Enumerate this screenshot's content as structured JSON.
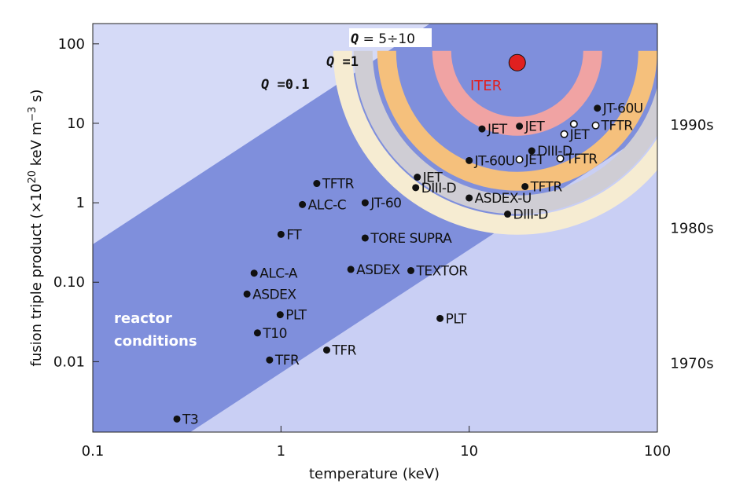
{
  "chart_data": {
    "type": "scatter",
    "xscale": "log",
    "yscale": "log",
    "xlim": [
      0.1,
      100
    ],
    "ylim": [
      0.0013,
      180
    ],
    "xlabel": "temperature (keV)",
    "ylabel_parts": {
      "prefix": "fusion triple product (×10",
      "exp1": "20",
      "mid": " keV m",
      "exp2": "−3",
      "suffix": " s)"
    },
    "xticks": [
      {
        "value": 0.1,
        "label": "0.1"
      },
      {
        "value": 1,
        "label": "1"
      },
      {
        "value": 10,
        "label": "10"
      },
      {
        "value": 100,
        "label": "100"
      }
    ],
    "yticks": [
      {
        "value": 0.01,
        "label": "0.01"
      },
      {
        "value": 0.1,
        "label": "0.10"
      },
      {
        "value": 1,
        "label": "1"
      },
      {
        "value": 10,
        "label": "10"
      },
      {
        "value": 100,
        "label": "100"
      }
    ],
    "eras": [
      {
        "label": "1990s",
        "value": 9.5
      },
      {
        "label": "1980s",
        "value": 0.48
      },
      {
        "label": "1970s",
        "value": 0.0095
      }
    ],
    "region_label_lines": [
      "reactor",
      "conditions"
    ],
    "q_labels": [
      {
        "italic": "Q",
        "rest": " = 5÷10",
        "boxed": true
      },
      {
        "italic": "Q",
        "rest": " =1",
        "boxed": false
      },
      {
        "italic": "Q",
        "rest": " =0.1",
        "boxed": false
      }
    ],
    "iter": {
      "label": "ITER",
      "x": 18,
      "y": 58,
      "color": "#e02020"
    },
    "points": [
      {
        "label": "T3",
        "x": 0.28,
        "y": 0.0019,
        "filled": true
      },
      {
        "label": "TFR",
        "x": 0.87,
        "y": 0.0105,
        "filled": true
      },
      {
        "label": "T10",
        "x": 0.75,
        "y": 0.023,
        "filled": true
      },
      {
        "label": "PLT",
        "x": 0.99,
        "y": 0.039,
        "filled": true
      },
      {
        "label": "ASDEX",
        "x": 0.66,
        "y": 0.071,
        "filled": true
      },
      {
        "label": "ALC-A",
        "x": 0.72,
        "y": 0.13,
        "filled": true
      },
      {
        "label": "FT",
        "x": 1.0,
        "y": 0.4,
        "filled": true
      },
      {
        "label": "ALC-C",
        "x": 1.3,
        "y": 0.95,
        "filled": true
      },
      {
        "label": "TFTR",
        "x": 1.55,
        "y": 1.75,
        "filled": true
      },
      {
        "label": "TFR",
        "x": 1.75,
        "y": 0.014,
        "filled": true
      },
      {
        "label": "ASDEX",
        "x": 2.35,
        "y": 0.145,
        "filled": true
      },
      {
        "label": "TORE SUPRA",
        "x": 2.8,
        "y": 0.36,
        "filled": true
      },
      {
        "label": "JT-60",
        "x": 2.8,
        "y": 1.0,
        "filled": true
      },
      {
        "label": "DIII-D",
        "x": 5.2,
        "y": 1.55,
        "filled": true
      },
      {
        "label": "JET",
        "x": 5.3,
        "y": 2.1,
        "filled": true
      },
      {
        "label": "TEXTOR",
        "x": 4.9,
        "y": 0.14,
        "filled": true
      },
      {
        "label": "PLT",
        "x": 7.0,
        "y": 0.035,
        "filled": true
      },
      {
        "label": "ASDEX-U",
        "x": 10.0,
        "y": 1.15,
        "filled": true
      },
      {
        "label": "JT-60U",
        "x": 10.0,
        "y": 3.4,
        "filled": true
      },
      {
        "label": "JET",
        "x": 11.7,
        "y": 8.5,
        "filled": true
      },
      {
        "label": "JET",
        "x": 18.5,
        "y": 9.2,
        "filled": true
      },
      {
        "label": "DIII-D",
        "x": 21.5,
        "y": 4.5,
        "filled": true
      },
      {
        "label": "JET",
        "x": 18.5,
        "y": 3.5,
        "filled": false
      },
      {
        "label": "DIII-D",
        "x": 16.0,
        "y": 0.72,
        "filled": true
      },
      {
        "label": "TFTR",
        "x": 19.8,
        "y": 1.6,
        "filled": true
      },
      {
        "label": "TFTR",
        "x": 30.5,
        "y": 3.6,
        "filled": false
      },
      {
        "label": "JET",
        "x": 32.0,
        "y": 7.3,
        "filled": false
      },
      {
        "label": "",
        "x": 36.0,
        "y": 9.8,
        "filled": false
      },
      {
        "label": "TFTR",
        "x": 47.0,
        "y": 9.4,
        "filled": false
      },
      {
        "label": "JT-60U",
        "x": 48.0,
        "y": 15.5,
        "filled": true
      }
    ],
    "colors": {
      "plot_bg": "#c9cff4",
      "plot_bg_upper": "#d5daf7",
      "band": "#7f8fdc",
      "ring_q10": "#f0a3a3",
      "ring_q1": "#f5c07c",
      "ring_q01": "#cfcdd4",
      "ring_outer": "#f6ecd2",
      "iter_marker": "#e02020"
    }
  }
}
